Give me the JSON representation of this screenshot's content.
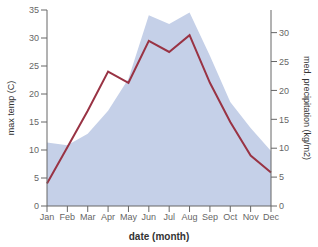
{
  "chart_data": {
    "type": "line",
    "xlabel": "date (month)",
    "ylabel": "max temp (C)",
    "y2label": "med. precipitation (kg/m2)",
    "categories": [
      "Jan",
      "Feb",
      "Mar",
      "Apr",
      "May",
      "Jun",
      "Jul",
      "Aug",
      "Sep",
      "Oct",
      "Nov",
      "Dec"
    ],
    "series": [
      {
        "type": "area",
        "axis": "y2",
        "color": "#c5d0e8",
        "values": [
          11.0,
          10.5,
          12.5,
          16.5,
          22.0,
          33.0,
          31.5,
          33.5,
          26.0,
          18.0,
          13.5,
          9.5
        ]
      },
      {
        "type": "line",
        "color": "#993344",
        "values": [
          4.0,
          10.5,
          17.0,
          24.0,
          22.0,
          29.5,
          27.5,
          30.5,
          22.0,
          15.0,
          9.0,
          6.0
        ]
      }
    ],
    "ylim": [
      0,
      35
    ],
    "yticks": [
      0,
      5,
      10,
      15,
      20,
      25,
      30,
      35
    ],
    "y2lim": [
      0,
      33.917
    ],
    "y2ticks": [
      0,
      5,
      10,
      15,
      20,
      25,
      30
    ]
  }
}
